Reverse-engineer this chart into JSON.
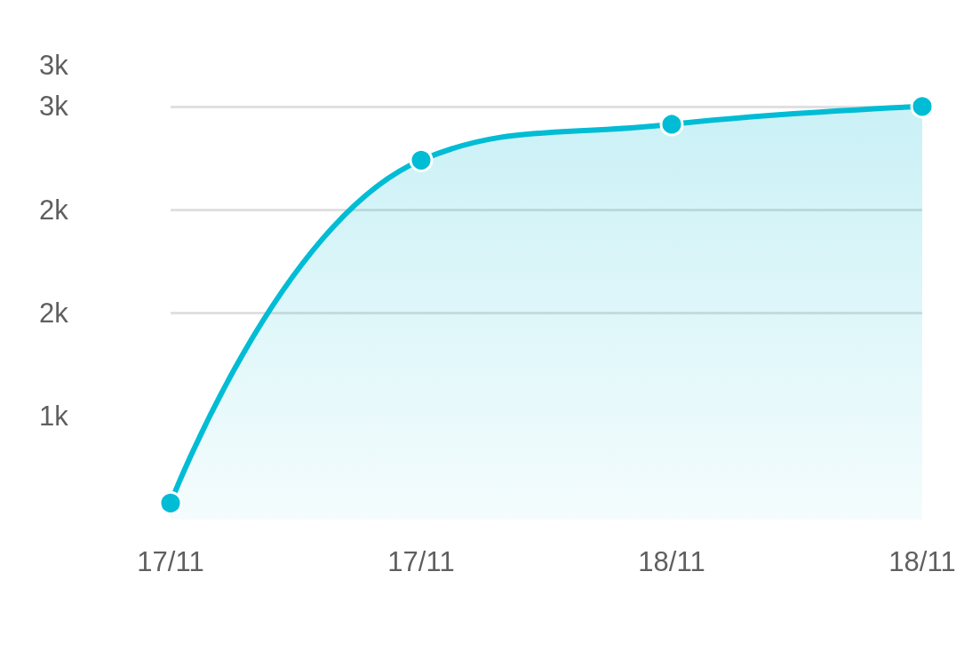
{
  "chart_data": {
    "type": "area",
    "categories": [
      "17/11",
      "17/11",
      "18/11",
      "18/11"
    ],
    "values": [
      120,
      2610,
      2870,
      3000
    ],
    "color": "#00bcd4",
    "ylim": [
      0,
      3300
    ],
    "yticks": [
      {
        "value": 750,
        "label": "1k"
      },
      {
        "value": 1500,
        "label": "2k"
      },
      {
        "value": 2250,
        "label": "2k"
      },
      {
        "value": 3000,
        "label": "3k"
      },
      {
        "value": 3300,
        "label": "3k"
      }
    ],
    "grid": "y",
    "marker": "circle"
  }
}
